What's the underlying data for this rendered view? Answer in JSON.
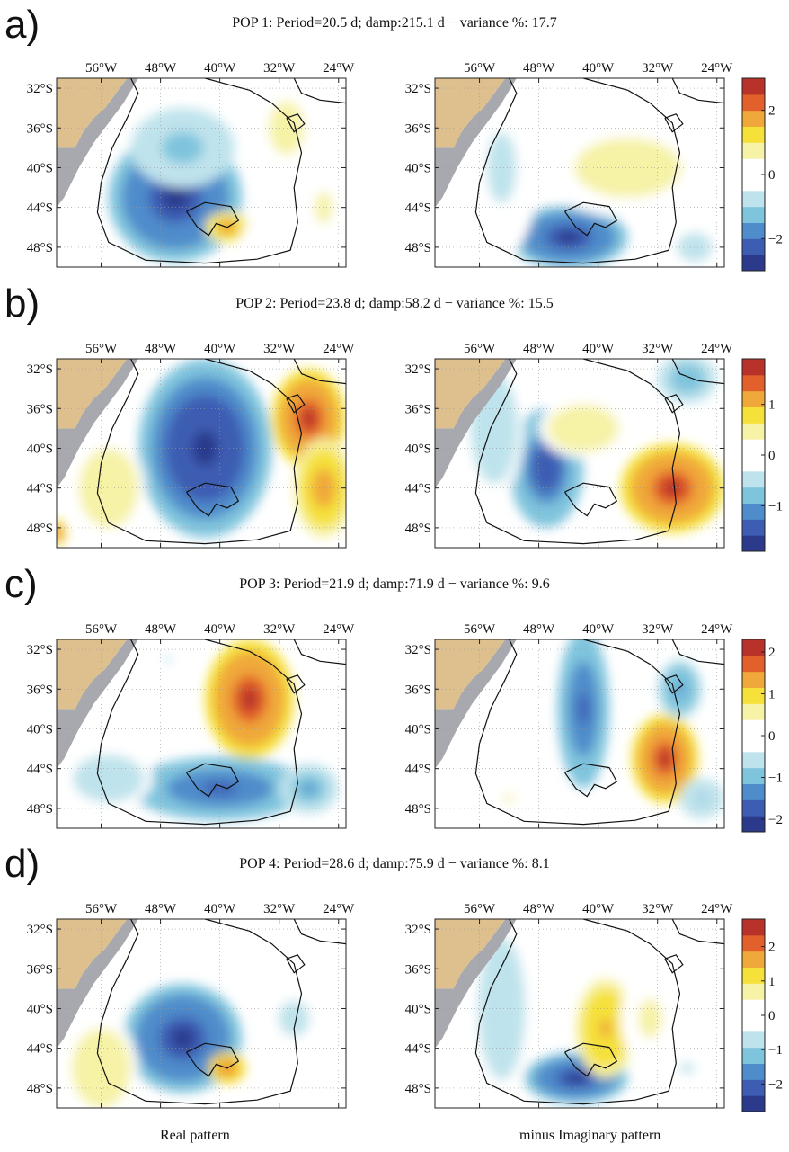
{
  "figure": {
    "footer": {
      "left_label": "Real pattern",
      "right_label": "minus Imaginary pattern"
    }
  },
  "colors": {
    "land": "#ddc08e",
    "shelf_land": "#a7a9ae",
    "contour": "#111111",
    "colormap": [
      "#2c3a8c",
      "#3d5db3",
      "#4f8ccb",
      "#7fc4dd",
      "#bfe3ec",
      "#ffffff",
      "#ffffff",
      "#f6f2a6",
      "#f5e13a",
      "#f0a83a",
      "#e2602c",
      "#b8322a"
    ]
  },
  "chart_data": [
    {
      "type": "heatmap",
      "panel": "a)",
      "title": "POP 1: Period=20.5 d; damp:215.1 d −  variance %: 17.7",
      "x_ticks": [
        "56°W",
        "48°W",
        "40°W",
        "32°W",
        "24°W"
      ],
      "y_ticks": [
        "32°S",
        "36°S",
        "40°S",
        "44°S",
        "48°S"
      ],
      "xlim": [
        -62,
        -23
      ],
      "ylim": [
        -50,
        -31
      ],
      "colorbar": {
        "ticks": [
          2,
          0,
          -2
        ],
        "range": [
          -3,
          3
        ]
      },
      "maps": [
        {
          "name": "Real pattern",
          "blobs": [
            {
              "lon": -46,
              "lat": -43,
              "rx": 9,
              "ry": 6.5,
              "value": -2.6
            },
            {
              "lon": -45,
              "lat": -38,
              "rx": 7,
              "ry": 4,
              "value": -1.2
            },
            {
              "lon": -39,
              "lat": -46,
              "rx": 3,
              "ry": 1.6,
              "value": 2.0
            },
            {
              "lon": -31,
              "lat": -36,
              "rx": 4,
              "ry": 4.5,
              "value": 0.8
            },
            {
              "lon": -26,
              "lat": -44,
              "rx": 3,
              "ry": 4,
              "value": 0.6
            },
            {
              "lon": -33,
              "lat": -47,
              "rx": 4,
              "ry": 2,
              "value": -0.5
            }
          ]
        },
        {
          "name": "minus Imaginary pattern",
          "blobs": [
            {
              "lon": -44,
              "lat": -47,
              "rx": 8,
              "ry": 3.2,
              "value": -2.6
            },
            {
              "lon": -36,
              "lat": -40,
              "rx": 12,
              "ry": 5,
              "value": 0.8
            },
            {
              "lon": -53,
              "lat": -40,
              "rx": 5,
              "ry": 9,
              "value": -0.6
            },
            {
              "lon": -26,
              "lat": -35,
              "rx": 4,
              "ry": 3,
              "value": -0.5
            },
            {
              "lon": -27,
              "lat": -48,
              "rx": 4,
              "ry": 2.5,
              "value": -0.8
            }
          ]
        }
      ]
    },
    {
      "type": "heatmap",
      "panel": "b)",
      "title": "POP 2: Period=23.8 d; damp:58.2 d −  variance %: 15.5",
      "x_ticks": [
        "56°W",
        "48°W",
        "40°W",
        "32°W",
        "24°W"
      ],
      "y_ticks": [
        "32°S",
        "36°S",
        "40°S",
        "44°S",
        "48°S"
      ],
      "xlim": [
        -62,
        -23
      ],
      "ylim": [
        -50,
        -31
      ],
      "colorbar": {
        "ticks": [
          1,
          0,
          -1
        ],
        "range": [
          -1.9,
          1.9
        ]
      },
      "maps": [
        {
          "name": "Real pattern",
          "blobs": [
            {
              "lon": -42,
              "lat": -40,
              "rx": 9,
              "ry": 9,
              "value": -1.8
            },
            {
              "lon": -28,
              "lat": -37,
              "rx": 5,
              "ry": 5,
              "value": 1.6
            },
            {
              "lon": -26,
              "lat": -44,
              "rx": 4,
              "ry": 5,
              "value": 1.1
            },
            {
              "lon": -55,
              "lat": -44,
              "rx": 5,
              "ry": 5,
              "value": 0.6
            },
            {
              "lon": -62,
              "lat": -48.5,
              "rx": 1.5,
              "ry": 1.5,
              "value": 1.3
            }
          ]
        },
        {
          "name": "minus Imaginary pattern",
          "blobs": [
            {
              "lon": -30,
              "lat": -44,
              "rx": 7,
              "ry": 4.5,
              "value": 1.6
            },
            {
              "lon": -47,
              "lat": -42,
              "rx": 5,
              "ry": 6,
              "value": -1.5
            },
            {
              "lon": -42,
              "lat": -38,
              "rx": 6,
              "ry": 3,
              "value": 0.6
            },
            {
              "lon": -54,
              "lat": -38,
              "rx": 4,
              "ry": 7,
              "value": -0.6
            },
            {
              "lon": -28,
              "lat": -33,
              "rx": 4,
              "ry": 2.5,
              "value": -0.9
            }
          ]
        }
      ]
    },
    {
      "type": "heatmap",
      "panel": "c)",
      "title": "POP 3: Period=21.9 d; damp:71.9 d −  variance %: 9.6",
      "x_ticks": [
        "56°W",
        "48°W",
        "40°W",
        "32°W",
        "24°W"
      ],
      "y_ticks": [
        "32°S",
        "36°S",
        "40°S",
        "44°S",
        "48°S"
      ],
      "xlim": [
        -62,
        -23
      ],
      "ylim": [
        -50,
        -31
      ],
      "colorbar": {
        "ticks": [
          2,
          1,
          0,
          -1,
          -2
        ],
        "range": [
          -2.3,
          2.3
        ]
      },
      "maps": [
        {
          "name": "Real pattern",
          "blobs": [
            {
              "lon": -36,
              "lat": -37,
              "rx": 6,
              "ry": 6,
              "value": 2.0
            },
            {
              "lon": -40,
              "lat": -46,
              "rx": 12,
              "ry": 3.2,
              "value": -1.7
            },
            {
              "lon": -28,
              "lat": -46,
              "rx": 4,
              "ry": 2.5,
              "value": -1.2
            },
            {
              "lon": -55,
              "lat": -45,
              "rx": 6,
              "ry": 3,
              "value": -0.7
            },
            {
              "lon": -47,
              "lat": -33,
              "rx": 3,
              "ry": 2,
              "value": -0.4
            }
          ]
        },
        {
          "name": "minus Imaginary pattern",
          "blobs": [
            {
              "lon": -42,
              "lat": -38,
              "rx": 3.5,
              "ry": 8,
              "value": -1.6
            },
            {
              "lon": -31,
              "lat": -43,
              "rx": 4.5,
              "ry": 4.5,
              "value": 2.0
            },
            {
              "lon": -29,
              "lat": -36,
              "rx": 3,
              "ry": 3,
              "value": -1.3
            },
            {
              "lon": -26,
              "lat": -47,
              "rx": 3,
              "ry": 2,
              "value": -0.8
            },
            {
              "lon": -52,
              "lat": -47,
              "rx": 4,
              "ry": 2,
              "value": 0.4
            }
          ]
        }
      ]
    },
    {
      "type": "heatmap",
      "panel": "d)",
      "title": "POP 4: Period=28.6 d; damp:75.9 d −  variance %: 8.1",
      "x_ticks": [
        "56°W",
        "48°W",
        "40°W",
        "32°W",
        "24°W"
      ],
      "y_ticks": [
        "32°S",
        "36°S",
        "40°S",
        "44°S",
        "48°S"
      ],
      "xlim": [
        -62,
        -23
      ],
      "ylim": [
        -50,
        -31
      ],
      "colorbar": {
        "ticks": [
          2,
          1,
          0,
          -1,
          -2
        ],
        "range": [
          -2.8,
          2.8
        ]
      },
      "maps": [
        {
          "name": "Real pattern",
          "blobs": [
            {
              "lon": -45,
              "lat": -43,
              "rx": 8,
              "ry": 5.5,
              "value": -2.4
            },
            {
              "lon": -39,
              "lat": -46,
              "rx": 2.5,
              "ry": 1.6,
              "value": 2.0
            },
            {
              "lon": -56,
              "lat": -46,
              "rx": 5,
              "ry": 5,
              "value": 0.8
            },
            {
              "lon": -30,
              "lat": -41,
              "rx": 3.5,
              "ry": 3,
              "value": -0.7
            }
          ]
        },
        {
          "name": "minus Imaginary pattern",
          "blobs": [
            {
              "lon": -43,
              "lat": -47,
              "rx": 7,
              "ry": 2.6,
              "value": -2.4
            },
            {
              "lon": -39,
              "lat": -42,
              "rx": 4,
              "ry": 5,
              "value": 1.6
            },
            {
              "lon": -33,
              "lat": -41,
              "rx": 4,
              "ry": 5,
              "value": 0.6
            },
            {
              "lon": -53,
              "lat": -40,
              "rx": 4,
              "ry": 9,
              "value": -0.8
            },
            {
              "lon": -28,
              "lat": -46,
              "rx": 5,
              "ry": 3,
              "value": -0.5
            }
          ]
        }
      ]
    }
  ]
}
